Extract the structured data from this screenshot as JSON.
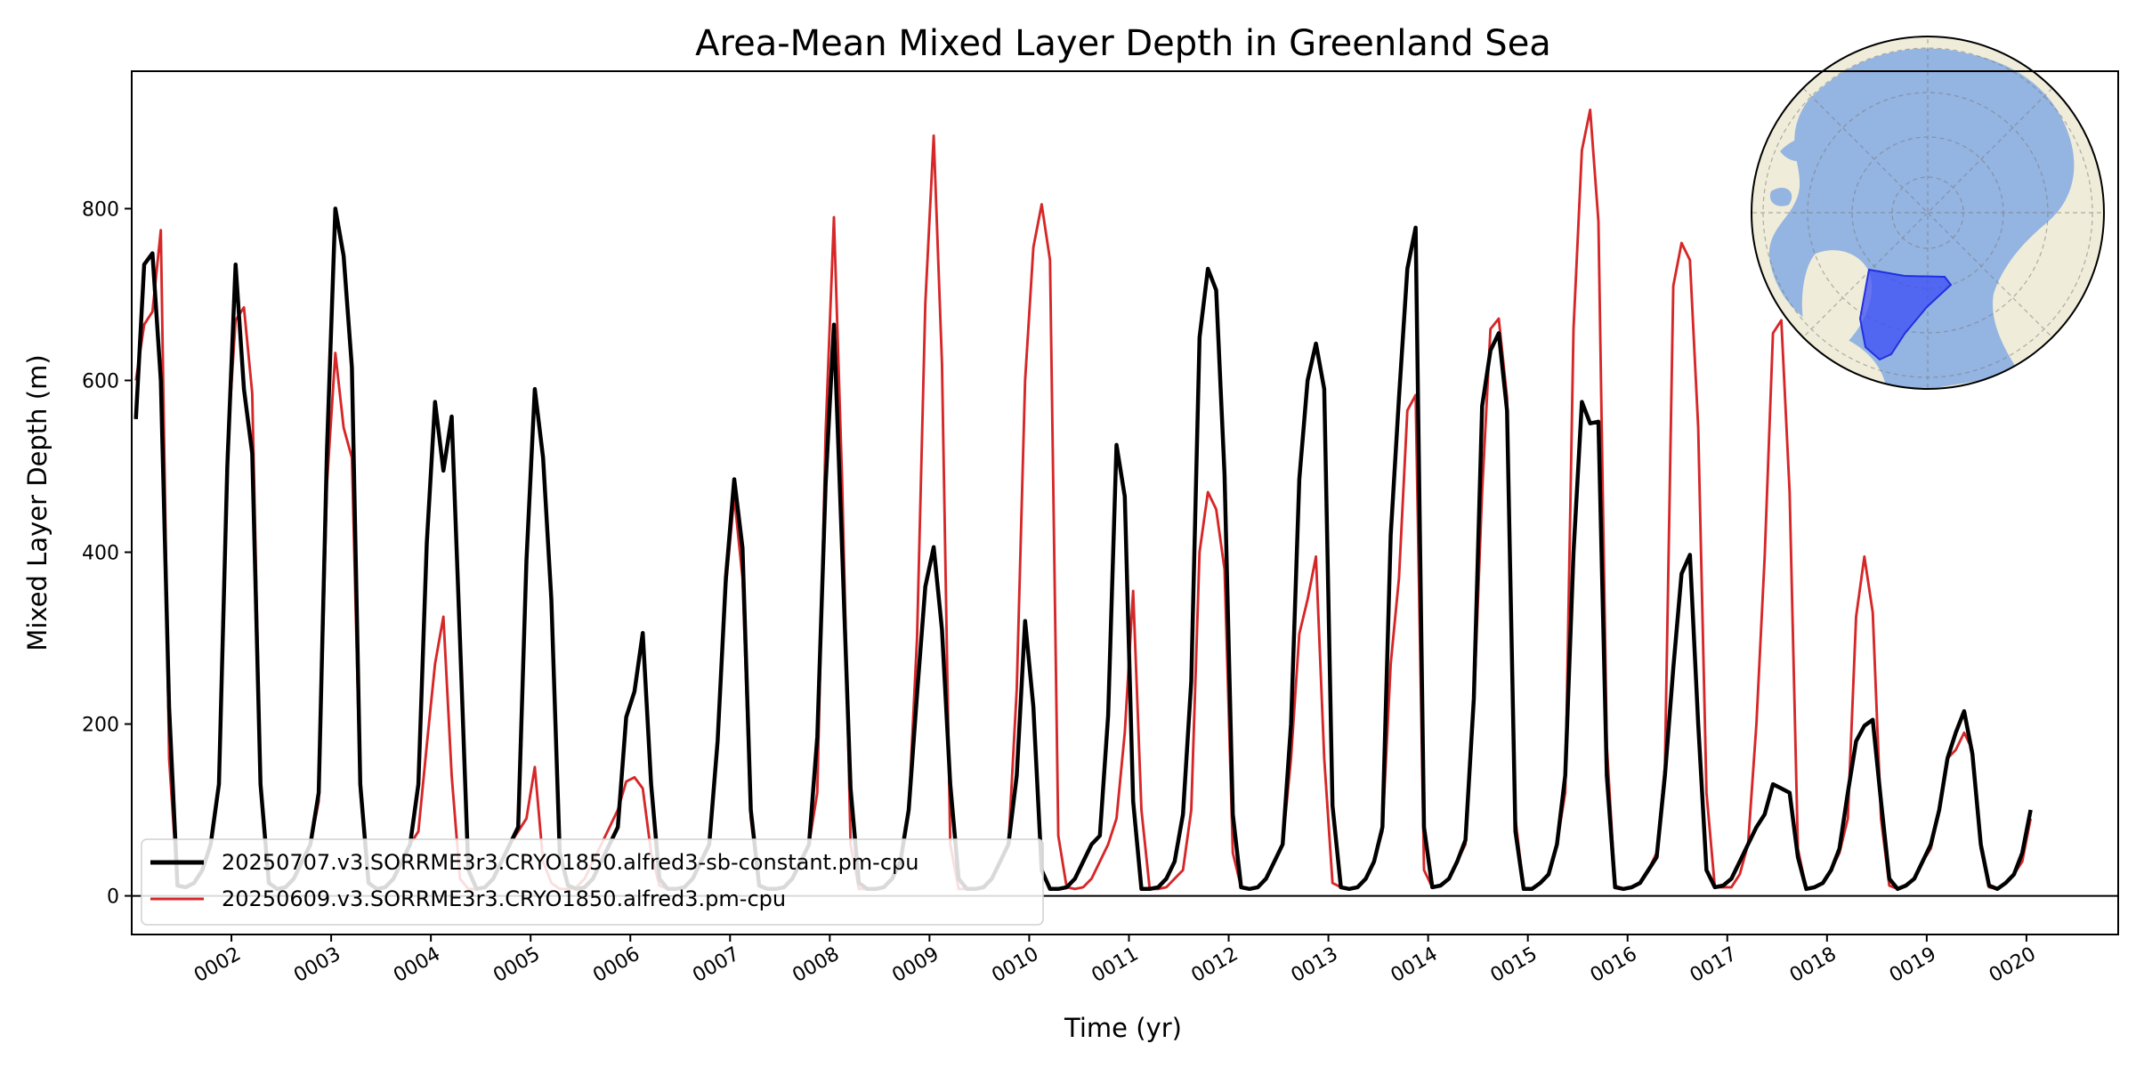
{
  "chart_data": {
    "type": "line",
    "title": "Area-Mean Mixed Layer Depth in Greenland Sea",
    "xlabel": "Time (yr)",
    "ylabel": "Mixed Layer Depth (m)",
    "xlim": [
      1.0,
      20.92
    ],
    "ylim": [
      -45,
      960
    ],
    "x_tick_values": [
      2,
      3,
      4,
      5,
      6,
      7,
      8,
      9,
      10,
      11,
      12,
      13,
      14,
      15,
      16,
      17,
      18,
      19,
      20
    ],
    "x_tick_labels": [
      "0002",
      "0003",
      "0004",
      "0005",
      "0006",
      "0007",
      "0008",
      "0009",
      "0010",
      "0011",
      "0012",
      "0013",
      "0014",
      "0015",
      "0016",
      "0017",
      "0018",
      "0019",
      "0020"
    ],
    "y_ticks": [
      0,
      200,
      400,
      600,
      800
    ],
    "grid": false,
    "zero_line": true,
    "legend_position": "lower-left",
    "inset_map": "north-polar-stereographic map with Greenland Sea region highlighted",
    "x_note": "x values are model years; monthly samples at year + (month-0.5)/12",
    "series": [
      {
        "name": "20250707.v3.SORRME3r3.CRYO1850.alfred3-sb-constant.pm-cpu",
        "color": "#000000",
        "width": 2.8,
        "values": [
          555,
          735,
          748,
          600,
          220,
          12,
          10,
          15,
          30,
          60,
          130,
          500,
          735,
          590,
          515,
          130,
          15,
          8,
          10,
          20,
          40,
          60,
          120,
          520,
          800,
          745,
          615,
          130,
          15,
          8,
          10,
          20,
          40,
          60,
          130,
          410,
          575,
          495,
          558,
          300,
          30,
          8,
          10,
          20,
          40,
          60,
          80,
          390,
          590,
          510,
          345,
          50,
          12,
          8,
          10,
          20,
          40,
          60,
          80,
          208,
          238,
          306,
          130,
          20,
          8,
          8,
          10,
          20,
          40,
          60,
          180,
          370,
          485,
          405,
          100,
          12,
          8,
          8,
          10,
          20,
          40,
          60,
          185,
          480,
          665,
          400,
          125,
          15,
          8,
          8,
          10,
          20,
          40,
          100,
          235,
          360,
          406,
          310,
          130,
          20,
          8,
          8,
          10,
          20,
          40,
          60,
          140,
          320,
          220,
          30,
          8,
          8,
          10,
          20,
          40,
          60,
          70,
          210,
          525,
          465,
          110,
          8,
          8,
          10,
          20,
          40,
          95,
          250,
          650,
          730,
          705,
          490,
          95,
          10,
          8,
          10,
          20,
          40,
          60,
          200,
          485,
          600,
          643,
          590,
          105,
          10,
          8,
          10,
          20,
          40,
          80,
          420,
          580,
          730,
          778,
          80,
          10,
          12,
          20,
          40,
          65,
          230,
          570,
          635,
          655,
          565,
          75,
          8,
          8,
          15,
          25,
          60,
          140,
          400,
          575,
          550,
          552,
          140,
          10,
          8,
          10,
          15,
          30,
          45,
          140,
          265,
          375,
          397,
          200,
          30,
          10,
          12,
          20,
          40,
          60,
          80,
          95,
          130,
          125,
          120,
          45,
          8,
          10,
          15,
          30,
          55,
          120,
          180,
          198,
          205,
          110,
          20,
          8,
          12,
          20,
          40,
          60,
          100,
          160,
          190,
          215,
          165,
          60,
          12,
          8,
          15,
          25,
          50,
          100
        ]
      },
      {
        "name": "20250609.v3.SORRME3r3.CRYO1850.alfred3.pm-cpu",
        "color": "#d62728",
        "width": 1.8,
        "values": [
          600,
          665,
          680,
          775,
          160,
          12,
          10,
          15,
          30,
          60,
          130,
          520,
          670,
          685,
          585,
          135,
          15,
          8,
          10,
          20,
          40,
          60,
          110,
          480,
          632,
          545,
          510,
          120,
          15,
          8,
          10,
          20,
          40,
          60,
          75,
          175,
          270,
          325,
          140,
          20,
          8,
          8,
          10,
          20,
          40,
          60,
          75,
          90,
          150,
          40,
          15,
          8,
          8,
          10,
          20,
          40,
          60,
          80,
          100,
          133,
          138,
          125,
          50,
          12,
          8,
          8,
          10,
          20,
          40,
          60,
          180,
          360,
          465,
          370,
          90,
          12,
          8,
          8,
          10,
          20,
          40,
          60,
          120,
          540,
          790,
          480,
          60,
          8,
          8,
          8,
          10,
          20,
          40,
          100,
          300,
          690,
          885,
          620,
          60,
          8,
          8,
          8,
          10,
          20,
          40,
          60,
          240,
          600,
          755,
          805,
          740,
          70,
          10,
          8,
          10,
          20,
          40,
          60,
          90,
          190,
          355,
          100,
          8,
          8,
          10,
          20,
          30,
          100,
          400,
          470,
          450,
          380,
          50,
          10,
          8,
          10,
          20,
          40,
          60,
          160,
          305,
          345,
          395,
          160,
          15,
          10,
          8,
          10,
          20,
          40,
          75,
          270,
          370,
          565,
          583,
          30,
          10,
          12,
          20,
          40,
          60,
          220,
          470,
          660,
          672,
          580,
          90,
          8,
          8,
          15,
          25,
          60,
          120,
          660,
          868,
          915,
          785,
          175,
          12,
          8,
          10,
          15,
          30,
          50,
          150,
          710,
          760,
          740,
          545,
          120,
          10,
          10,
          10,
          25,
          60,
          200,
          395,
          655,
          670,
          470,
          55,
          8,
          10,
          15,
          30,
          50,
          90,
          325,
          395,
          330,
          90,
          12,
          8,
          12,
          20,
          40,
          55,
          100,
          160,
          170,
          190,
          170,
          55,
          10,
          8,
          15,
          25,
          40,
          90
        ]
      }
    ]
  }
}
